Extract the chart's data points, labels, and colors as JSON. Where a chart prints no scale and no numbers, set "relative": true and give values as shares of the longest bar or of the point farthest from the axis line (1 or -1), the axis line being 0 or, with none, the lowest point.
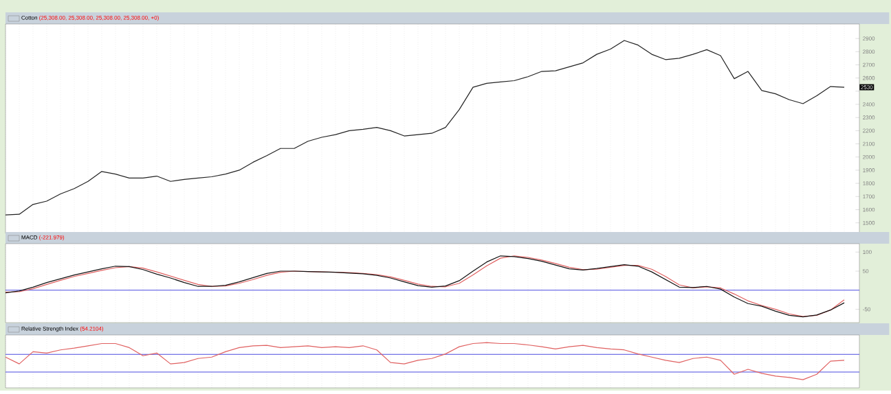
{
  "chart_data": [
    {
      "type": "line",
      "title": "Cotton",
      "subtitle": "(25,308.00, 25,308.00, 25,308.00, 25,308.00, +0)",
      "categories": [
        null,
        null,
        null,
        null,
        null,
        null,
        null,
        null,
        null,
        null,
        null,
        null,
        null,
        null,
        null,
        null,
        null,
        null,
        null,
        null,
        null,
        null,
        null,
        null,
        null,
        null,
        null,
        null,
        null,
        null,
        null,
        null,
        null,
        null,
        null,
        null,
        null,
        null,
        null,
        null,
        null,
        null,
        null,
        null,
        null,
        null,
        null,
        null,
        null,
        null,
        null,
        null,
        null,
        null,
        null,
        null,
        null,
        null,
        null,
        null,
        null,
        null
      ],
      "series": [
        {
          "color": "#222222",
          "values": [
            1560,
            1565,
            1640,
            1665,
            1720,
            1760,
            1815,
            1890,
            1870,
            1840,
            1840,
            1855,
            1815,
            1830,
            1840,
            1850,
            1870,
            1900,
            1960,
            2010,
            2065,
            2065,
            2120,
            2150,
            2170,
            2200,
            2210,
            2225,
            2200,
            2160,
            2170,
            2180,
            2225,
            2360,
            2530,
            2560,
            2570,
            2580,
            2610,
            2650,
            2655,
            2685,
            2715,
            2780,
            2820,
            2885,
            2850,
            2780,
            2740,
            2750,
            2780,
            2815,
            2770,
            2595,
            2650,
            2505,
            2480,
            2435,
            2405,
            2465,
            2535,
            2530
          ]
        }
      ],
      "ylim": [
        1420,
        3010
      ],
      "yticks": [
        1500,
        1600,
        1700,
        1800,
        1900,
        2000,
        2100,
        2200,
        2300,
        2400,
        {
          "value": 2500,
          "label": null
        },
        2600,
        2700,
        2800,
        2900
      ],
      "annotations": [
        {
          "text": "2530",
          "y": 2530
        }
      ],
      "grid": "x",
      "tick_labels": "y",
      "marker": "none",
      "line_style": "solid"
    },
    {
      "type": "line",
      "title": "MACD",
      "subtitle": "(-221.979)",
      "categories": [
        null,
        null,
        null,
        null,
        null,
        null,
        null,
        null,
        null,
        null,
        null,
        null,
        null,
        null,
        null,
        null,
        null,
        null,
        null,
        null,
        null,
        null,
        null,
        null,
        null,
        null,
        null,
        null,
        null,
        null,
        null,
        null,
        null,
        null,
        null,
        null,
        null,
        null,
        null,
        null,
        null,
        null,
        null,
        null,
        null,
        null,
        null,
        null,
        null,
        null,
        null,
        null,
        null,
        null,
        null,
        null,
        null,
        null,
        null,
        null,
        null,
        null
      ],
      "series": [
        {
          "color": "#e06060",
          "values": [
            -5,
            -4,
            4,
            15,
            26,
            36,
            44,
            52,
            59,
            62,
            58,
            48,
            37,
            26,
            15,
            10,
            11,
            18,
            28,
            39,
            47,
            50,
            49,
            48,
            47,
            46,
            44,
            41,
            35,
            26,
            16,
            10,
            9,
            18,
            40,
            64,
            84,
            90,
            86,
            79,
            70,
            60,
            54,
            55,
            60,
            65,
            65,
            55,
            36,
            14,
            6,
            9,
            6,
            -10,
            -28,
            -40,
            -50,
            -62,
            -69,
            -66,
            -52,
            -25
          ]
        },
        {
          "color": "#111111",
          "values": [
            -7,
            -2,
            8,
            20,
            30,
            40,
            48,
            56,
            63,
            62,
            54,
            42,
            32,
            20,
            10,
            10,
            13,
            22,
            33,
            44,
            50,
            50,
            49,
            48,
            47,
            45,
            43,
            39,
            32,
            22,
            12,
            8,
            11,
            25,
            50,
            74,
            90,
            88,
            83,
            76,
            66,
            56,
            53,
            57,
            62,
            67,
            63,
            48,
            28,
            8,
            7,
            10,
            3,
            -18,
            -35,
            -42,
            -55,
            -66,
            -70,
            -65,
            -52,
            -33
          ]
        }
      ],
      "ylim": [
        -85,
        122
      ],
      "yticks": [
        -50,
        50,
        100
      ],
      "ref_lines": [
        {
          "axis": "y",
          "value": 0,
          "color": "#4a4ae0"
        }
      ],
      "grid": "x",
      "tick_labels": "y",
      "marker": "none",
      "line_style": "solid"
    },
    {
      "type": "line",
      "title": "Relative Strength Index",
      "subtitle": "(54.2104)",
      "relative": true,
      "categories": [
        null,
        null,
        null,
        null,
        null,
        null,
        null,
        null,
        null,
        null,
        null,
        null,
        null,
        null,
        null,
        null,
        null,
        null,
        null,
        null,
        null,
        null,
        null,
        null,
        null,
        null,
        null,
        null,
        null,
        null,
        null,
        null,
        null,
        null,
        null,
        null,
        null,
        null,
        null,
        null,
        null,
        null,
        null,
        null,
        null,
        null,
        null,
        null,
        null,
        null,
        null,
        null,
        null,
        null,
        null,
        null,
        null,
        null,
        null,
        null,
        null,
        null
      ],
      "series": [
        {
          "color": "#e06060",
          "values": [
            0.68,
            0.53,
            0.8,
            0.77,
            0.84,
            0.88,
            0.93,
            0.98,
            0.98,
            0.89,
            0.71,
            0.77,
            0.53,
            0.56,
            0.65,
            0.68,
            0.8,
            0.89,
            0.93,
            0.94,
            0.89,
            0.91,
            0.93,
            0.89,
            0.91,
            0.89,
            0.93,
            0.84,
            0.56,
            0.53,
            0.61,
            0.65,
            0.75,
            0.91,
            0.98,
            1,
            0.98,
            0.98,
            0.95,
            0.91,
            0.86,
            0.91,
            0.94,
            0.89,
            0.86,
            0.84,
            0.75,
            0.68,
            0.61,
            0.56,
            0.65,
            0.68,
            0.61,
            0.3,
            0.41,
            0.32,
            0.26,
            0.23,
            0.18,
            0.3,
            0.59,
            0.61
          ]
        }
      ],
      "ref_lines": [
        {
          "axis": "y",
          "value": 0.74,
          "color": "#4a4ae0"
        },
        {
          "axis": "y",
          "value": 0.35,
          "color": "#4a4ae0"
        }
      ],
      "grid": "x",
      "tick_labels": false,
      "marker": "none",
      "line_style": "solid"
    }
  ]
}
